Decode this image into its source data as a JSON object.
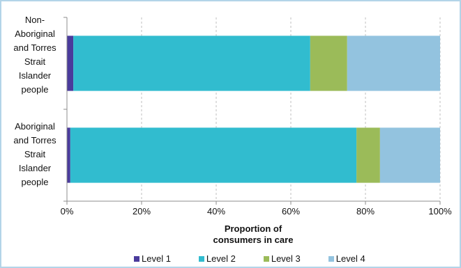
{
  "chart_data": {
    "type": "bar",
    "orientation": "horizontal",
    "stacked": true,
    "categories": [
      "Non-Aboriginal and Torres Strait Islander people",
      "Aboriginal and Torres Strait Islander people"
    ],
    "series": [
      {
        "name": "Level 1",
        "color": "#4a3b9c",
        "values": [
          1.7,
          0.9
        ]
      },
      {
        "name": "Level 2",
        "color": "#31bccf",
        "values": [
          63.5,
          76.7
        ]
      },
      {
        "name": "Level 3",
        "color": "#9bbb59",
        "values": [
          9.9,
          6.3
        ]
      },
      {
        "name": "Level 4",
        "color": "#93c3df",
        "values": [
          24.9,
          16.1
        ]
      }
    ],
    "xlabel": "Proportion of consumers in care",
    "xlim": [
      0,
      100
    ],
    "xticks": [
      0,
      20,
      40,
      60,
      80,
      100
    ],
    "xtick_labels": [
      "0%",
      "20%",
      "40%",
      "60%",
      "80%",
      "100%"
    ],
    "grid": true,
    "legend": "bottom"
  }
}
